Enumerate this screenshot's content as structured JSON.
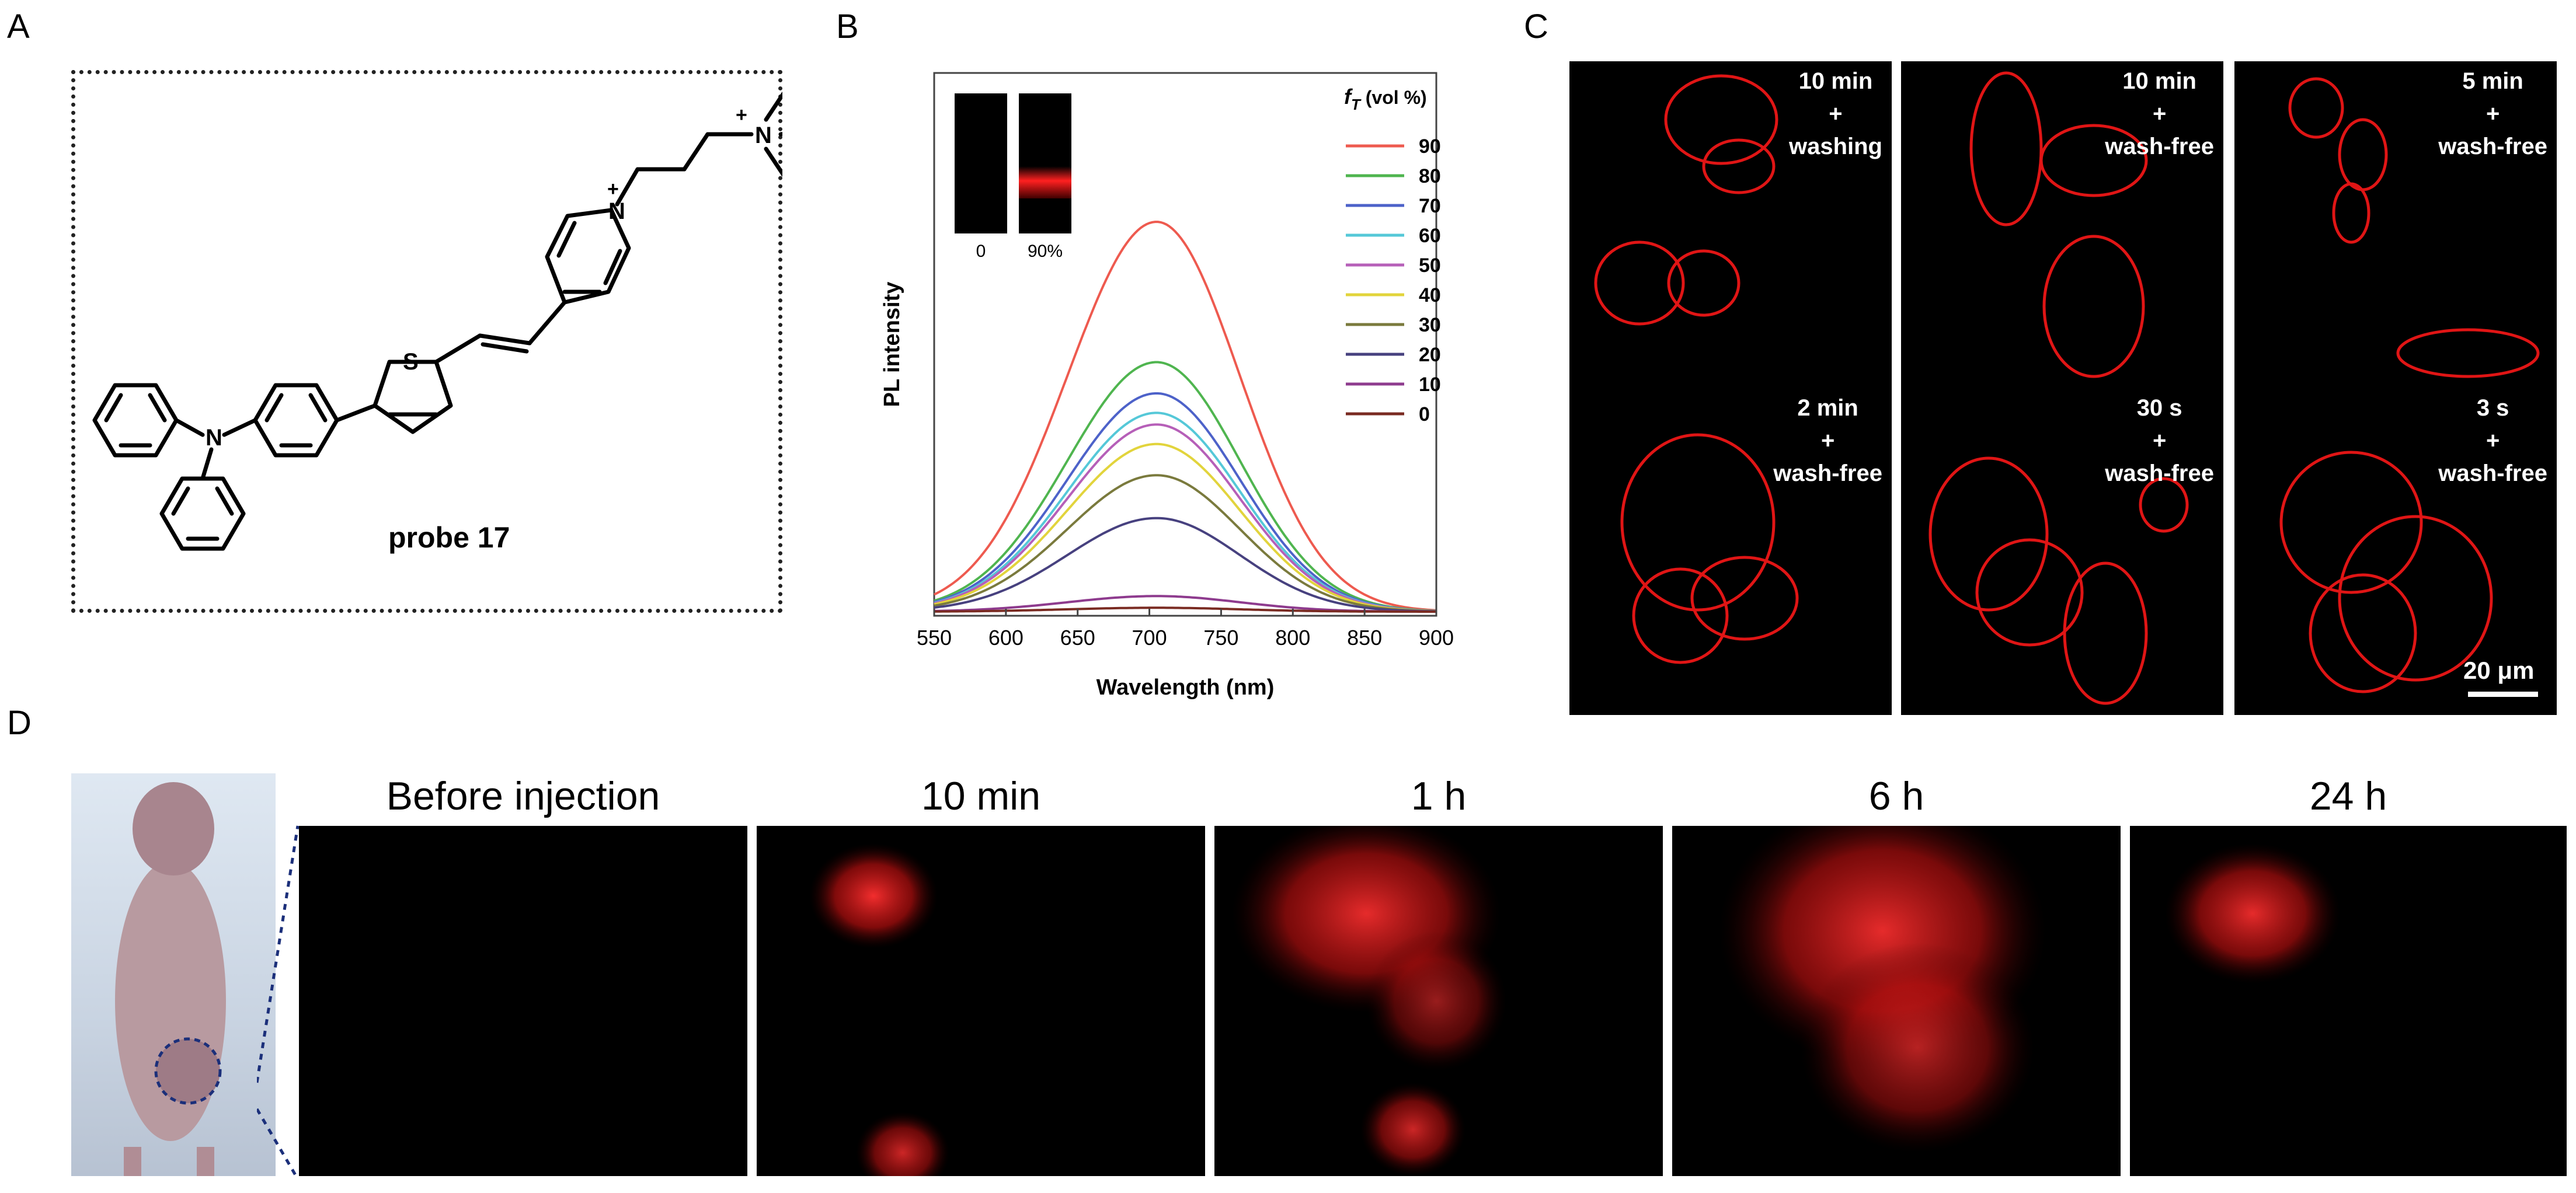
{
  "panels": {
    "a": "A",
    "b": "B",
    "c": "C",
    "d": "D"
  },
  "panelA": {
    "probe_label": "probe 17",
    "atoms": {
      "N_amine": "N",
      "S": "S",
      "N_pyridinium": "N",
      "N_ammonium": "N",
      "plus": "+"
    }
  },
  "panelB": {
    "inset_labels": [
      "0",
      "90%"
    ],
    "legend_title_f": "f",
    "legend_title_sub": "T",
    "legend_title_rest": " (vol %)"
  },
  "chart_data": {
    "type": "line",
    "xlabel": "Wavelength (nm)",
    "ylabel": "PL intensity",
    "xlim": [
      550,
      900
    ],
    "xticks": [
      "550",
      "600",
      "650",
      "700",
      "750",
      "800",
      "850",
      "900"
    ],
    "legend_placement": "top-right",
    "peak_wavelength": 705,
    "series": [
      {
        "name": "90",
        "color": "#ee5a4f",
        "peak": 1.0
      },
      {
        "name": "80",
        "color": "#4fb54f",
        "peak": 0.64
      },
      {
        "name": "70",
        "color": "#4d62c9",
        "peak": 0.56
      },
      {
        "name": "60",
        "color": "#55c8d8",
        "peak": 0.51
      },
      {
        "name": "50",
        "color": "#b65fb8",
        "peak": 0.48
      },
      {
        "name": "40",
        "color": "#e2d43c",
        "peak": 0.43
      },
      {
        "name": "30",
        "color": "#7a7a3d",
        "peak": 0.35
      },
      {
        "name": "20",
        "color": "#47417f",
        "peak": 0.24
      },
      {
        "name": "10",
        "color": "#8e3b8e",
        "peak": 0.04
      },
      {
        "name": "0",
        "color": "#7a2b22",
        "peak": 0.01
      }
    ]
  },
  "panelC": {
    "captions": [
      [
        "10 min",
        "+",
        "washing"
      ],
      [
        "10 min",
        "+",
        "wash-free"
      ],
      [
        "5 min",
        "+",
        "wash-free"
      ],
      [
        "2 min",
        "+",
        "wash-free"
      ],
      [
        "30 s",
        "+",
        "wash-free"
      ],
      [
        "3 s",
        "+",
        "wash-free"
      ]
    ],
    "scale_bar": "20 μm"
  },
  "panelD": {
    "time_labels": [
      "Before injection",
      "10 min",
      "1 h",
      "6 h",
      "24 h"
    ]
  },
  "colors": {
    "signal_red": "#e01515",
    "background": "#000000"
  }
}
